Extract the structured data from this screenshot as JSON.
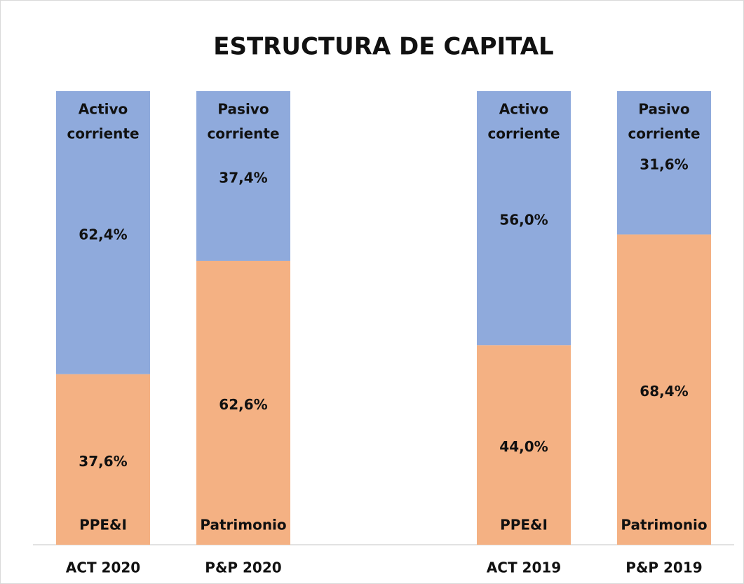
{
  "chart_data": {
    "type": "stacked_bar",
    "title": "ESTRUCTURA DE CAPITAL",
    "categories": [
      "ACT 2020",
      "P&P 2020",
      null,
      "ACT 2019",
      "P&P 2019"
    ],
    "ylim": [
      0,
      100
    ],
    "series": [
      {
        "color": "#f4b183",
        "values": [
          37.6,
          62.6,
          null,
          44.0,
          68.4
        ],
        "value_labels": [
          "37,6%",
          "62,6%",
          null,
          "44,0%",
          "68,4%"
        ],
        "segment_labels": [
          [
            "PPE&I"
          ],
          [
            "Patrimonio"
          ],
          null,
          [
            "PPE&I"
          ],
          [
            "Patrimonio"
          ]
        ]
      },
      {
        "color": "#8faadc",
        "values": [
          62.4,
          37.4,
          null,
          56.0,
          31.6
        ],
        "value_labels": [
          "62,4%",
          "37,4%",
          null,
          "56,0%",
          "31,6%"
        ],
        "segment_labels": [
          [
            "Activo",
            "corriente"
          ],
          [
            "Pasivo",
            "corriente"
          ],
          null,
          [
            "Activo",
            "corriente"
          ],
          [
            "Pasivo",
            "corriente"
          ]
        ]
      }
    ]
  }
}
